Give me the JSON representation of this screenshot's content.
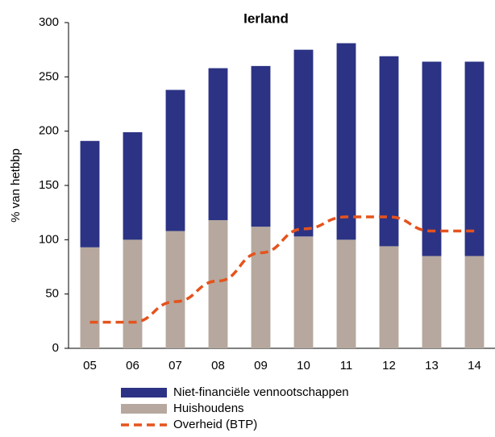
{
  "chart_data": {
    "type": "bar",
    "stacked": true,
    "title": "Ierland",
    "ylabel": "% van hetbbp",
    "categories": [
      "05",
      "06",
      "07",
      "08",
      "09",
      "10",
      "11",
      "12",
      "13",
      "14"
    ],
    "series": [
      {
        "name": "Huishoudens",
        "color": "#b6a89e",
        "values": [
          93,
          100,
          108,
          118,
          112,
          103,
          100,
          94,
          85,
          85
        ]
      },
      {
        "name": "Niet-financiële vennootschappen",
        "color": "#2c3384",
        "values": [
          98,
          99,
          130,
          140,
          148,
          172,
          181,
          175,
          179,
          179
        ]
      },
      {
        "name": "Overheid (BTP)",
        "type": "line",
        "color": "#e5531d",
        "dashed": true,
        "values": [
          24,
          24,
          43,
          62,
          88,
          110,
          121,
          121,
          108,
          108
        ]
      }
    ],
    "ylim": [
      0,
      300
    ],
    "yticks": [
      0,
      50,
      100,
      150,
      200,
      250,
      300
    ]
  }
}
